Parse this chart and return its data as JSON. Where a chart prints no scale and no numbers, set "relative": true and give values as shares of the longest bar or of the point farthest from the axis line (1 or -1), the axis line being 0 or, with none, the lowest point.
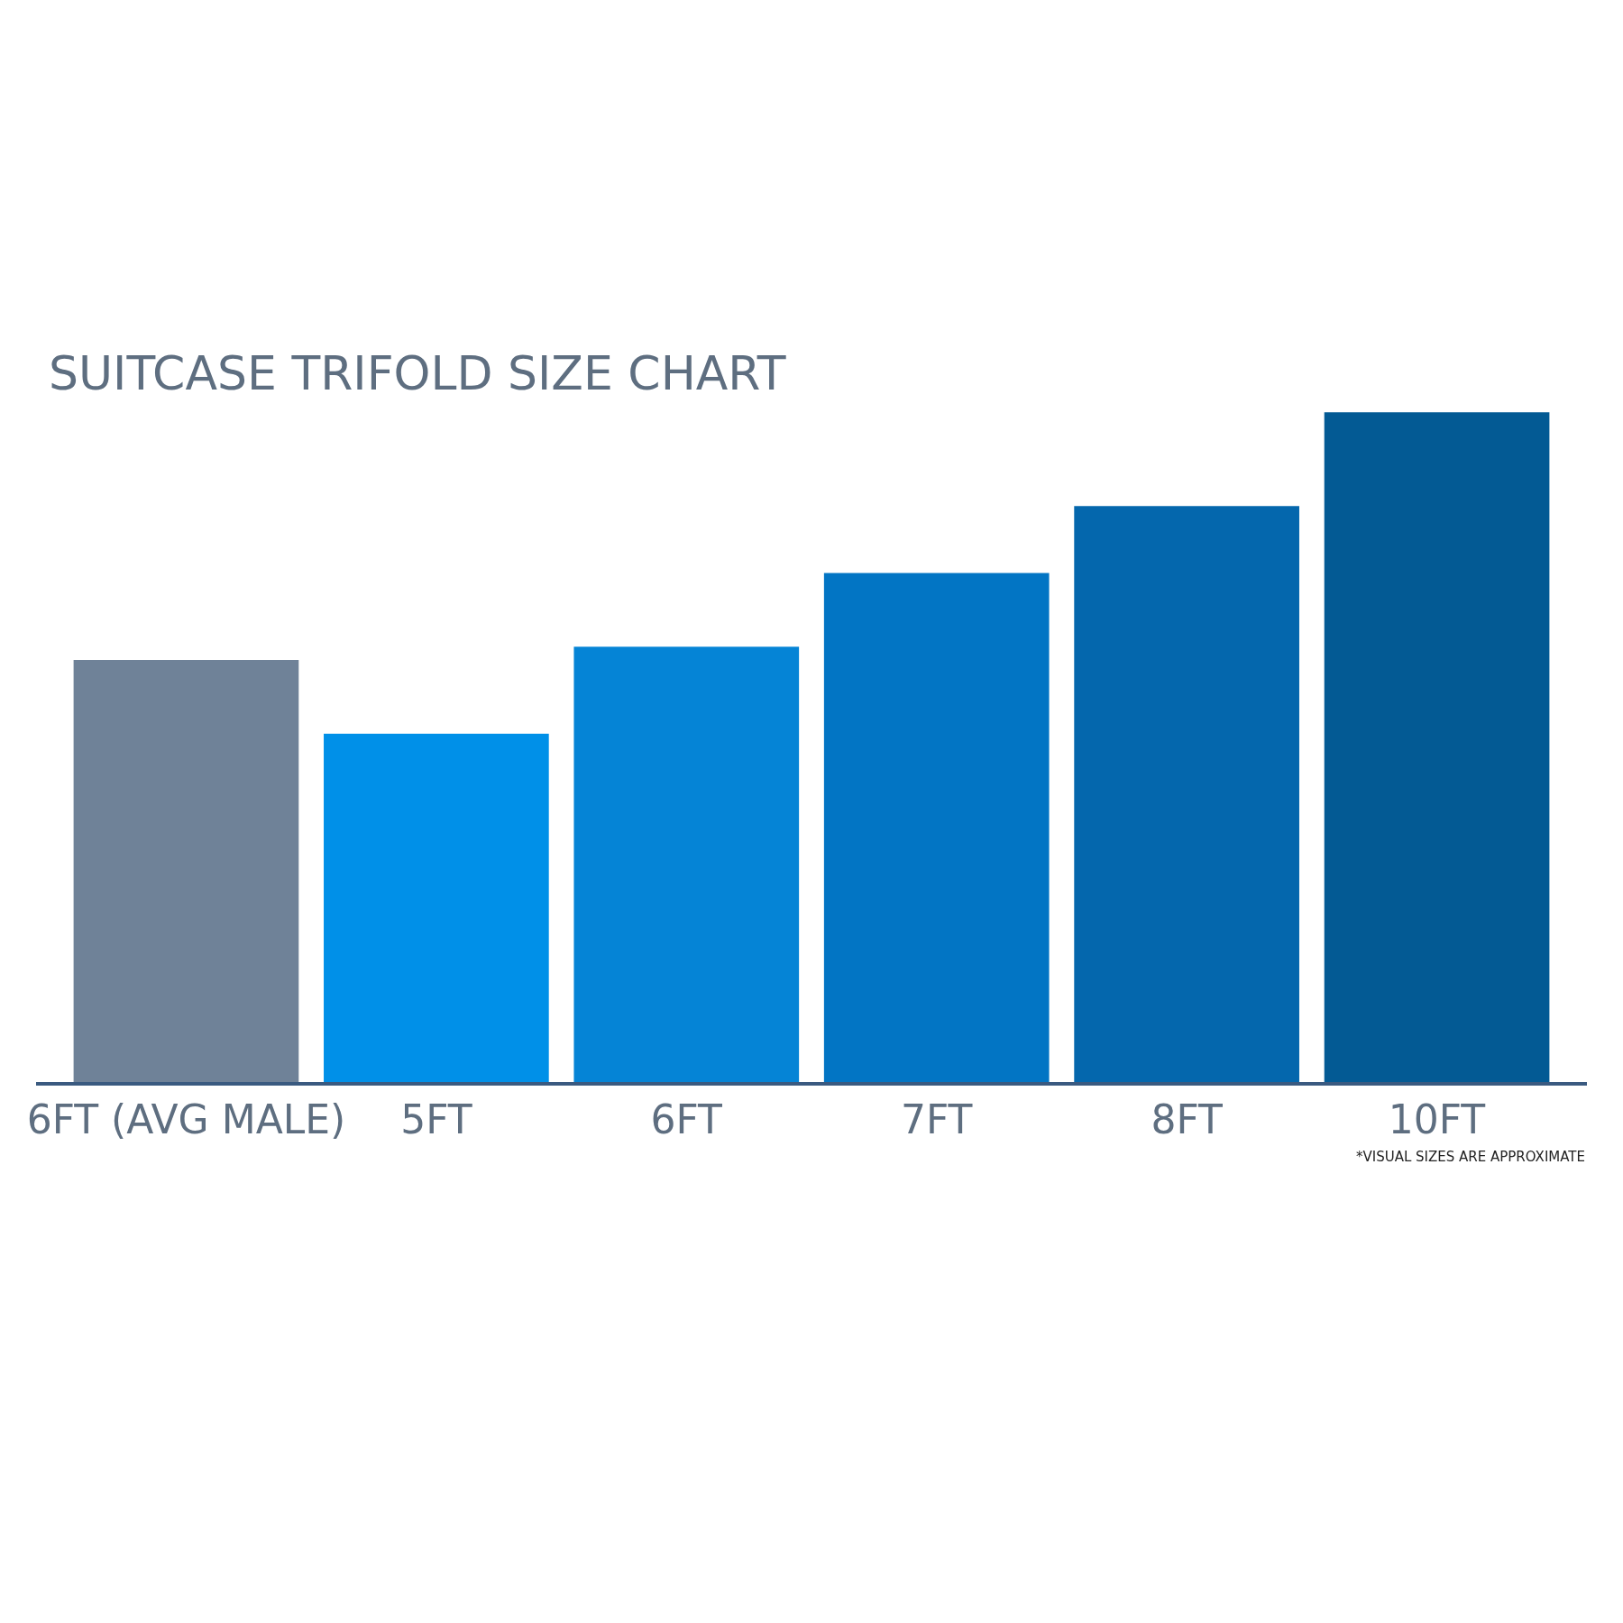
{
  "chart_data": {
    "type": "bar",
    "title": "SUITCASE TRIFOLD SIZE CHART",
    "relative": true,
    "categories": [
      "6FT (AVG MALE)",
      "5FT",
      "6FT",
      "7FT",
      "8FT",
      "10FT"
    ],
    "values": [
      0.63,
      0.52,
      0.65,
      0.76,
      0.86,
      1
    ],
    "colors": [
      "#6f8298",
      "#0090e8",
      "#0584d6",
      "#0275c4",
      "#0467ad",
      "#035a94"
    ],
    "annotations": [
      "*VISUAL SIZES ARE APPROXIMATE"
    ]
  }
}
